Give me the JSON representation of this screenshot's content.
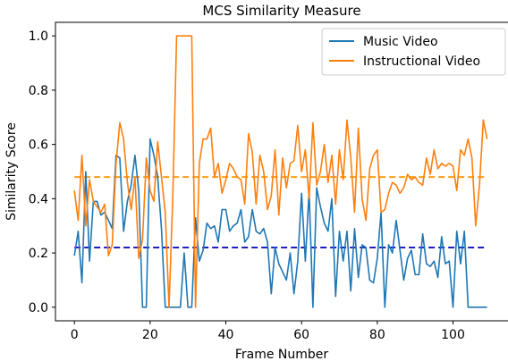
{
  "chart_data": {
    "type": "line",
    "title": "MCS Similarity Measure",
    "xlabel": "Frame Number",
    "ylabel": "Similarity Score",
    "xlim": [
      -5,
      115
    ],
    "ylim": [
      -0.05,
      1.05
    ],
    "xticks": [
      0,
      20,
      40,
      60,
      80,
      100
    ],
    "yticks": [
      0.0,
      0.2,
      0.4,
      0.6,
      0.8,
      1.0
    ],
    "ytick_labels": [
      "0.0",
      "0.2",
      "0.4",
      "0.6",
      "0.8",
      "1.0"
    ],
    "grid": false,
    "legend_position": "top-right",
    "series": [
      {
        "name": "Music Video",
        "color": "#1f77b4",
        "x": [
          0,
          1,
          2,
          3,
          4,
          5,
          6,
          7,
          8,
          9,
          10,
          11,
          12,
          13,
          14,
          15,
          16,
          17,
          18,
          19,
          20,
          21,
          22,
          23,
          24,
          25,
          26,
          27,
          28,
          29,
          30,
          31,
          32,
          33,
          34,
          35,
          36,
          37,
          38,
          39,
          40,
          41,
          42,
          43,
          44,
          45,
          46,
          47,
          48,
          49,
          50,
          51,
          52,
          53,
          54,
          55,
          56,
          57,
          58,
          59,
          60,
          61,
          62,
          63,
          64,
          65,
          66,
          67,
          68,
          69,
          70,
          71,
          72,
          73,
          74,
          75,
          76,
          77,
          78,
          79,
          80,
          81,
          82,
          83,
          84,
          85,
          86,
          87,
          88,
          89,
          90,
          91,
          92,
          93,
          94,
          95,
          96,
          97,
          98,
          99,
          100,
          101,
          102,
          103,
          104,
          105,
          106,
          107,
          108,
          109
        ],
        "y": [
          0.19,
          0.28,
          0.09,
          0.5,
          0.17,
          0.39,
          0.39,
          0.34,
          0.35,
          0.32,
          0.29,
          0.56,
          0.55,
          0.28,
          0.39,
          0.45,
          0.56,
          0.43,
          0.0,
          0.0,
          0.62,
          0.56,
          0.48,
          0.29,
          0.0,
          0.0,
          0.0,
          0.0,
          0.0,
          0.2,
          0.0,
          0.0,
          0.33,
          0.17,
          0.21,
          0.31,
          0.29,
          0.3,
          0.24,
          0.36,
          0.36,
          0.28,
          0.3,
          0.31,
          0.36,
          0.24,
          0.26,
          0.36,
          0.28,
          0.27,
          0.29,
          0.24,
          0.05,
          0.22,
          0.16,
          0.13,
          0.1,
          0.2,
          0.05,
          0.17,
          0.42,
          0.17,
          0.43,
          0.0,
          0.44,
          0.37,
          0.31,
          0.28,
          0.4,
          0.04,
          0.28,
          0.17,
          0.28,
          0.06,
          0.29,
          0.11,
          0.23,
          0.22,
          0.1,
          0.09,
          0.18,
          0.35,
          0.0,
          0.23,
          0.2,
          0.32,
          0.21,
          0.1,
          0.18,
          0.21,
          0.12,
          0.12,
          0.27,
          0.16,
          0.15,
          0.17,
          0.11,
          0.26,
          0.16,
          0.17,
          0.0,
          0.28,
          0.16,
          0.28,
          0.0,
          0.0,
          0.0,
          0.0,
          0.0,
          0.0
        ]
      },
      {
        "name": "Instructional Video",
        "color": "#ff7f0e",
        "x": [
          0,
          1,
          2,
          3,
          4,
          5,
          6,
          7,
          8,
          9,
          10,
          11,
          12,
          13,
          14,
          15,
          16,
          17,
          18,
          19,
          20,
          21,
          22,
          23,
          24,
          25,
          26,
          27,
          28,
          29,
          30,
          31,
          32,
          33,
          34,
          35,
          36,
          37,
          38,
          39,
          40,
          41,
          42,
          43,
          44,
          45,
          46,
          47,
          48,
          49,
          50,
          51,
          52,
          53,
          54,
          55,
          56,
          57,
          58,
          59,
          60,
          61,
          62,
          63,
          64,
          65,
          66,
          67,
          68,
          69,
          70,
          71,
          72,
          73,
          74,
          75,
          76,
          77,
          78,
          79,
          80,
          81,
          82,
          83,
          84,
          85,
          86,
          87,
          88,
          89,
          90,
          91,
          92,
          93,
          94,
          95,
          96,
          97,
          98,
          99,
          100,
          101,
          102,
          103,
          104,
          105,
          106,
          107,
          108,
          109
        ],
        "y": [
          0.43,
          0.32,
          0.56,
          0.3,
          0.47,
          0.39,
          0.37,
          0.35,
          0.38,
          0.19,
          0.23,
          0.53,
          0.68,
          0.62,
          0.46,
          0.36,
          0.48,
          0.18,
          0.25,
          0.55,
          0.43,
          0.39,
          0.61,
          0.48,
          0.35,
          0.0,
          0.41,
          1.0,
          1.0,
          1.0,
          1.0,
          1.0,
          0.0,
          0.53,
          0.62,
          0.62,
          0.66,
          0.48,
          0.53,
          0.42,
          0.47,
          0.53,
          0.51,
          0.48,
          0.47,
          0.38,
          0.64,
          0.57,
          0.38,
          0.56,
          0.5,
          0.36,
          0.41,
          0.58,
          0.34,
          0.55,
          0.44,
          0.53,
          0.54,
          0.67,
          0.5,
          0.58,
          0.4,
          0.68,
          0.45,
          0.5,
          0.6,
          0.46,
          0.56,
          0.38,
          0.58,
          0.47,
          0.69,
          0.55,
          0.35,
          0.66,
          0.4,
          0.32,
          0.51,
          0.56,
          0.58,
          0.35,
          0.36,
          0.42,
          0.46,
          0.45,
          0.42,
          0.44,
          0.49,
          0.47,
          0.48,
          0.46,
          0.45,
          0.55,
          0.49,
          0.58,
          0.51,
          0.53,
          0.52,
          0.53,
          0.52,
          0.43,
          0.58,
          0.56,
          0.62,
          0.55,
          0.3,
          0.45,
          0.69,
          0.62
        ]
      }
    ],
    "reference_lines": [
      {
        "series": "Instructional Video",
        "y": 0.48,
        "color": "#ff9f1a",
        "style": "dashed"
      },
      {
        "series": "Music Video",
        "y": 0.22,
        "color": "#1f1fbf",
        "style": "dashed"
      }
    ]
  }
}
